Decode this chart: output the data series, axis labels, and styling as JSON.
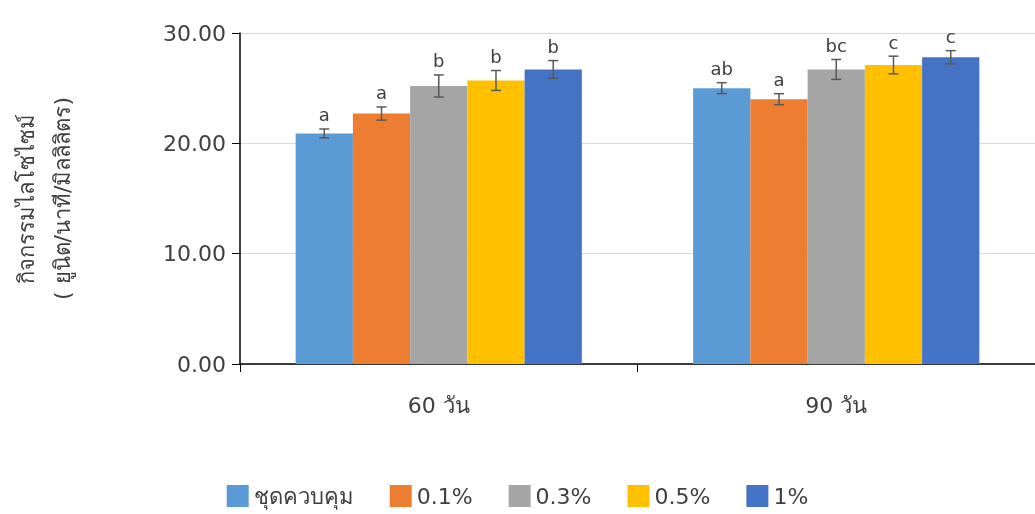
{
  "chart_data": {
    "type": "bar",
    "ylabel": "กิจกรรมไลโซไซม์\n( ยูนิต/นาที/มิลลิลิตร)",
    "categories": [
      "60 วัน",
      "90 วัน"
    ],
    "series": [
      {
        "name": "ชุดควบคุม",
        "color": "#5b9bd5",
        "values": [
          20.9,
          25.0
        ],
        "errors": [
          0.4,
          0.5
        ],
        "value_labels": [
          "a",
          "ab"
        ]
      },
      {
        "name": "0.1%",
        "color": "#ed7d31",
        "values": [
          22.7,
          24.0
        ],
        "errors": [
          0.6,
          0.5
        ],
        "value_labels": [
          "a",
          "a"
        ]
      },
      {
        "name": "0.3%",
        "color": "#a5a5a5",
        "values": [
          25.2,
          26.7
        ],
        "errors": [
          1.0,
          0.9
        ],
        "value_labels": [
          "b",
          "bc"
        ]
      },
      {
        "name": "0.5%",
        "color": "#ffc000",
        "values": [
          25.7,
          27.1
        ],
        "errors": [
          0.9,
          0.8
        ],
        "value_labels": [
          "b",
          "c"
        ]
      },
      {
        "name": "1%",
        "color": "#4472c4",
        "values": [
          26.7,
          27.8
        ],
        "errors": [
          0.8,
          0.6
        ],
        "value_labels": [
          "b",
          "c"
        ]
      }
    ],
    "ylim": [
      0,
      30
    ],
    "yticks": [
      {
        "value": 0,
        "label": "0.00"
      },
      {
        "value": 10,
        "label": "10.00"
      },
      {
        "value": 20,
        "label": "20.00"
      },
      {
        "value": 30,
        "label": "30.00"
      }
    ],
    "grid": "y",
    "legend": "bottom"
  }
}
